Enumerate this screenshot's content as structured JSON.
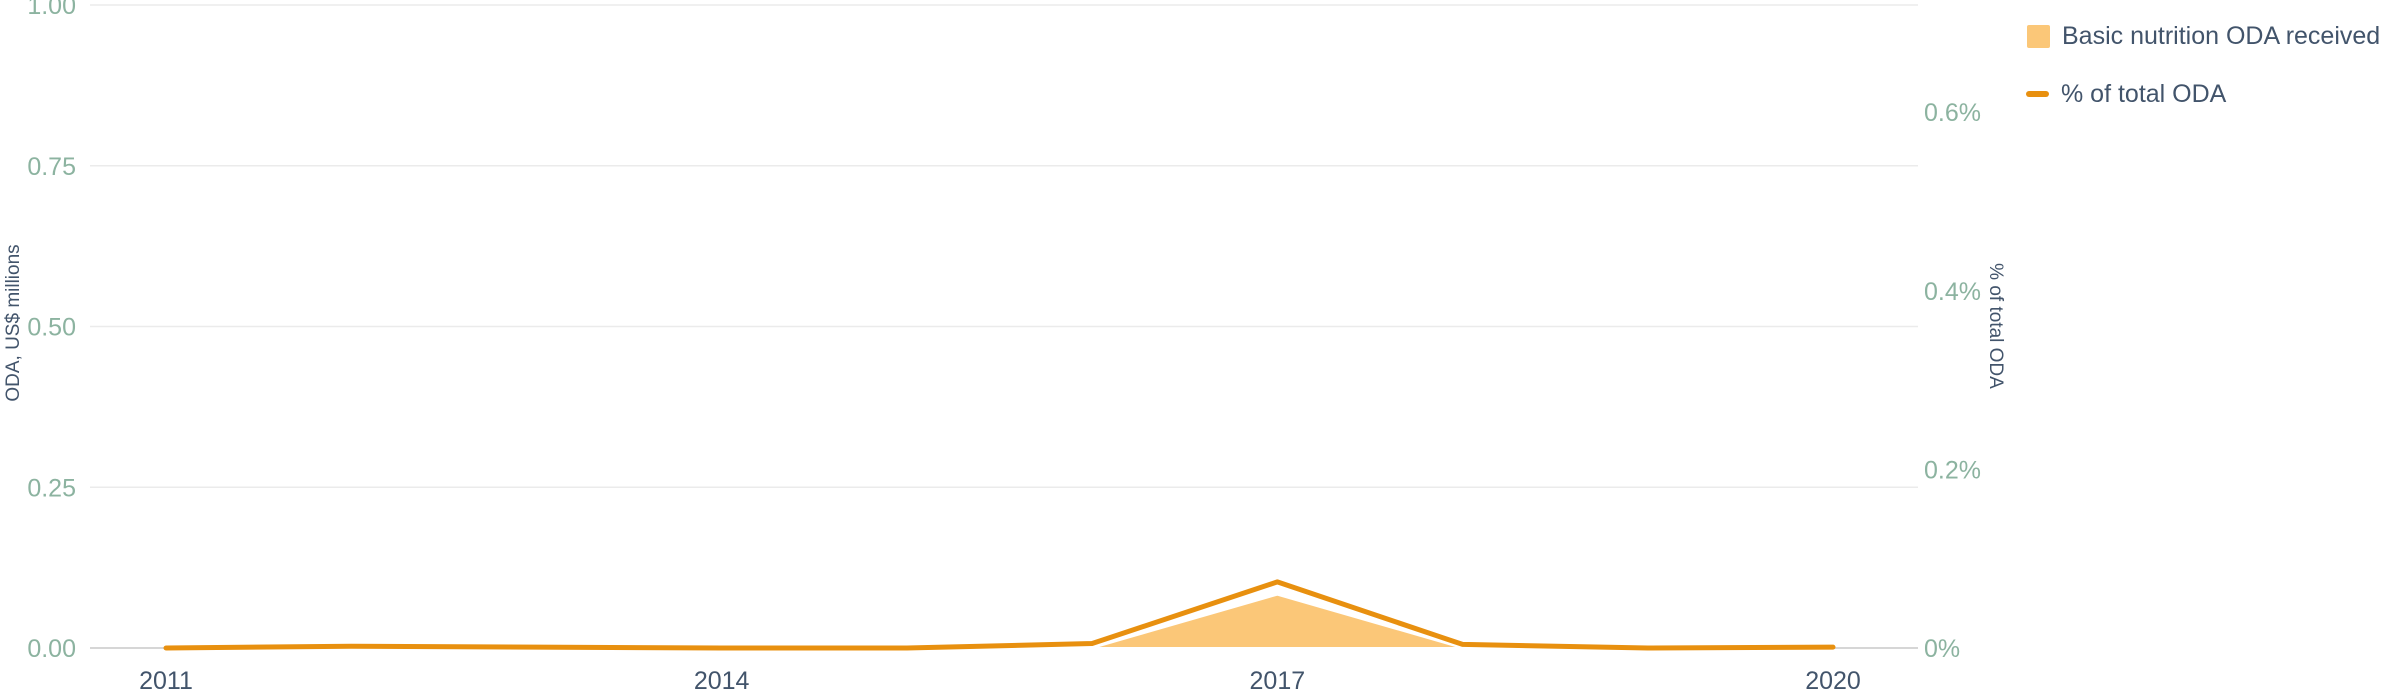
{
  "chart_data": {
    "type": "area",
    "x": [
      2011,
      2012,
      2013,
      2014,
      2015,
      2016,
      2017,
      2018,
      2019,
      2020
    ],
    "x_tick_labels": [
      "2011",
      "2014",
      "2017",
      "2020"
    ],
    "series": [
      {
        "name": "Basic nutrition ODA received",
        "type": "area",
        "axis": "left",
        "values": [
          0.0,
          0.0,
          0.0,
          0.0,
          0.0,
          0.0,
          0.083,
          0.0,
          0.0,
          0.0
        ]
      },
      {
        "name": "% of total ODA",
        "type": "line",
        "axis": "right",
        "values": [
          0.0,
          0.002,
          0.001,
          0.0,
          0.0,
          0.005,
          0.074,
          0.004,
          0.0,
          0.001
        ]
      }
    ],
    "left_axis": {
      "label": "ODA, US$ millions",
      "ylim": [
        0,
        1
      ],
      "ticks": [
        0,
        0.25,
        0.5,
        0.75,
        1
      ],
      "tick_labels": [
        "0.00",
        "0.25",
        "0.50",
        "0.75",
        "1.00"
      ]
    },
    "right_axis": {
      "label": "% of total ODA",
      "ylim": [
        0,
        0.72
      ],
      "ticks": [
        0,
        0.2,
        0.4,
        0.6
      ],
      "tick_labels": [
        "0%",
        "0.2%",
        "0.4%",
        "0.6%"
      ]
    },
    "grid": true,
    "legend_position": "top-right",
    "colors": {
      "area_fill": "#fbc778",
      "line": "#e8900f",
      "tick_text": "#8cb3a0",
      "axis_title": "#42546b",
      "x_tick_text": "#42546b",
      "grid": "#ebebeb",
      "baseline": "#c9c9c9"
    }
  }
}
